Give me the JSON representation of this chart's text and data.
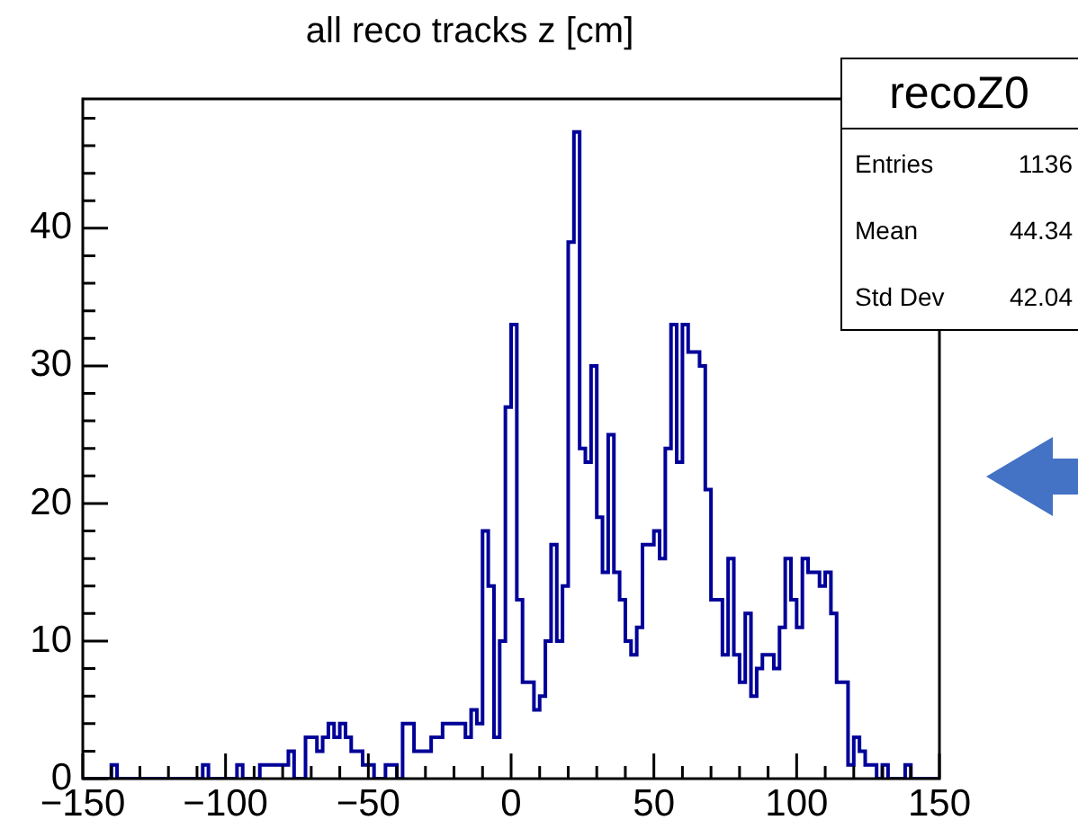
{
  "chart_data": {
    "type": "histogram",
    "title": "all reco tracks z [cm]",
    "color": "#000099",
    "bins": [
      -150,
      -148,
      -146,
      -144,
      -142,
      -140,
      -138,
      -136,
      -134,
      -132,
      -130,
      -128,
      -126,
      -124,
      -122,
      -120,
      -118,
      -116,
      -114,
      -112,
      -110,
      -108,
      -106,
      -104,
      -102,
      -100,
      -98,
      -96,
      -94,
      -92,
      -90,
      -88,
      -86,
      -84,
      -82,
      -80,
      -78,
      -76,
      -74,
      -72,
      -70,
      -68,
      -66,
      -64,
      -62,
      -60,
      -58,
      -56,
      -54,
      -52,
      -50,
      -48,
      -46,
      -44,
      -42,
      -40,
      -38,
      -36,
      -34,
      -32,
      -30,
      -28,
      -26,
      -24,
      -22,
      -20,
      -18,
      -16,
      -14,
      -12,
      -10,
      -8,
      -6,
      -4,
      -2,
      0,
      2,
      4,
      6,
      8,
      10,
      12,
      14,
      16,
      18,
      20,
      22,
      24,
      26,
      28,
      30,
      32,
      34,
      36,
      38,
      40,
      42,
      44,
      46,
      48,
      50,
      52,
      54,
      56,
      58,
      60,
      62,
      64,
      66,
      68,
      70,
      72,
      74,
      76,
      78,
      80,
      82,
      84,
      86,
      88,
      90,
      92,
      94,
      96,
      98,
      100,
      102,
      104,
      106,
      108,
      110,
      112,
      114,
      116,
      118,
      120,
      122,
      124,
      126,
      128,
      130,
      132,
      134,
      136,
      138,
      140,
      142,
      144,
      146,
      148,
      150
    ],
    "values": [
      0,
      0,
      0,
      0,
      0,
      1,
      0,
      0,
      0,
      0,
      0,
      0,
      0,
      0,
      0,
      0,
      0,
      0,
      0,
      0,
      0,
      1,
      0,
      0,
      0,
      0,
      0,
      1,
      0,
      0,
      0,
      1,
      1,
      1,
      1,
      1,
      2,
      0,
      0,
      3,
      3,
      2,
      3,
      4,
      3,
      4,
      3,
      2,
      2,
      1,
      1,
      0,
      0,
      1,
      1,
      0,
      4,
      4,
      2,
      2,
      2,
      3,
      3,
      4,
      4,
      4,
      4,
      3,
      5,
      4,
      18,
      14,
      3,
      10,
      27,
      33,
      13,
      7,
      7,
      5,
      6,
      10,
      17,
      10,
      14,
      39,
      47,
      24,
      23,
      30,
      19,
      15,
      25,
      15,
      13,
      10,
      9,
      11,
      17,
      17,
      18,
      16,
      24,
      33,
      23,
      33,
      31,
      31,
      30,
      21,
      13,
      13,
      9,
      16,
      9,
      7,
      12,
      6,
      8,
      9,
      9,
      8,
      11,
      16,
      13,
      11,
      16,
      15,
      15,
      14,
      15,
      12,
      7,
      7,
      1,
      3,
      2,
      1,
      1,
      0,
      1,
      0,
      0,
      0,
      1,
      0,
      0,
      0,
      0,
      0
    ],
    "xlim": [
      -150,
      150
    ],
    "ylim": [
      0,
      49.4
    ],
    "xticks": [
      {
        "value": -150,
        "label": "−150"
      },
      {
        "value": -140,
        "label": null
      },
      {
        "value": -130,
        "label": null
      },
      {
        "value": -120,
        "label": null
      },
      {
        "value": -110,
        "label": null
      },
      {
        "value": -100,
        "label": "−100"
      },
      {
        "value": -90,
        "label": null
      },
      {
        "value": -80,
        "label": null
      },
      {
        "value": -70,
        "label": null
      },
      {
        "value": -60,
        "label": null
      },
      {
        "value": -50,
        "label": "−50"
      },
      {
        "value": -40,
        "label": null
      },
      {
        "value": -30,
        "label": null
      },
      {
        "value": -20,
        "label": null
      },
      {
        "value": -10,
        "label": null
      },
      0,
      {
        "value": 10,
        "label": null
      },
      {
        "value": 20,
        "label": null
      },
      {
        "value": 30,
        "label": null
      },
      {
        "value": 40,
        "label": null
      },
      50,
      {
        "value": 60,
        "label": null
      },
      {
        "value": 70,
        "label": null
      },
      {
        "value": 80,
        "label": null
      },
      {
        "value": 90,
        "label": null
      },
      100,
      {
        "value": 110,
        "label": null
      },
      {
        "value": 120,
        "label": null
      },
      {
        "value": 130,
        "label": null
      },
      {
        "value": 140,
        "label": null
      },
      150
    ],
    "yticks": [
      0,
      {
        "value": 2,
        "label": null
      },
      {
        "value": 4,
        "label": null
      },
      {
        "value": 6,
        "label": null
      },
      {
        "value": 8,
        "label": null
      },
      10,
      {
        "value": 12,
        "label": null
      },
      {
        "value": 14,
        "label": null
      },
      {
        "value": 16,
        "label": null
      },
      {
        "value": 18,
        "label": null
      },
      20,
      {
        "value": 22,
        "label": null
      },
      {
        "value": 24,
        "label": null
      },
      {
        "value": 26,
        "label": null
      },
      {
        "value": 28,
        "label": null
      },
      30,
      {
        "value": 32,
        "label": null
      },
      {
        "value": 34,
        "label": null
      },
      {
        "value": 36,
        "label": null
      },
      {
        "value": 38,
        "label": null
      },
      40,
      {
        "value": 42,
        "label": null
      },
      {
        "value": 44,
        "label": null
      },
      {
        "value": 46,
        "label": null
      },
      {
        "value": 48,
        "label": null
      }
    ],
    "annotations": [
      "recoZ0",
      "Entries",
      "1136",
      "Mean",
      "44.34",
      "Std Dev",
      "42.04"
    ],
    "grid": false,
    "legend": false
  }
}
